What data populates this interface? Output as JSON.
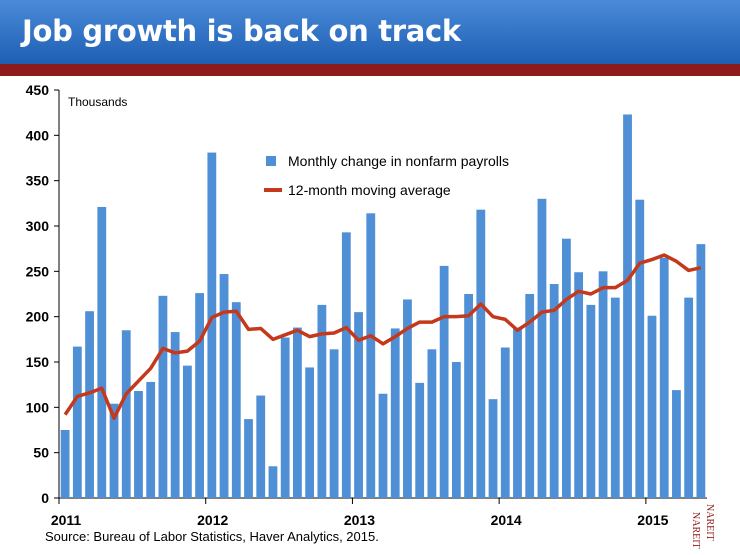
{
  "header": {
    "title": "Job growth is back on track"
  },
  "source": "Source: Bureau of Labor Statistics, Haver Analytics, 2015.",
  "logo": {
    "text": "NAREIT",
    "color": "#8e1b1b"
  },
  "colors": {
    "bar": "#4f8fd6",
    "line": "#c4391c",
    "header": "#2f6fc4",
    "rule": "#8e1b1b"
  },
  "chart_data": {
    "type": "bar",
    "unit_label": "Thousands",
    "ylim": [
      0,
      450
    ],
    "yticks": [
      0,
      50,
      100,
      150,
      200,
      250,
      300,
      350,
      400,
      450
    ],
    "x_tick_labels": [
      "2011",
      "2012",
      "2013",
      "2014",
      "2015"
    ],
    "x_tick_month_index": [
      0,
      12,
      24,
      36,
      48
    ],
    "grid": false,
    "legend": {
      "position": "top-center"
    },
    "series": [
      {
        "name": "Monthly change in nonfarm payrolls",
        "kind": "bar",
        "color": "#4f8fd6",
        "values": [
          75,
          167,
          206,
          321,
          104,
          185,
          118,
          128,
          223,
          183,
          146,
          226,
          381,
          247,
          216,
          87,
          113,
          35,
          177,
          188,
          144,
          213,
          164,
          293,
          205,
          314,
          115,
          187,
          219,
          127,
          164,
          256,
          150,
          225,
          318,
          109,
          166,
          188,
          225,
          330,
          236,
          286,
          249,
          213,
          250,
          221,
          423,
          329,
          201,
          265,
          119,
          221,
          280
        ]
      },
      {
        "name": "12-month moving average",
        "kind": "line",
        "color": "#c4391c",
        "values": [
          92,
          112,
          116,
          121,
          88,
          115,
          129,
          143,
          165,
          160,
          162,
          173,
          199,
          205,
          206,
          186,
          187,
          175,
          180,
          185,
          178,
          181,
          182,
          188,
          174,
          179,
          170,
          178,
          187,
          194,
          194,
          200,
          200,
          201,
          214,
          200,
          197,
          185,
          194,
          205,
          207,
          219,
          228,
          225,
          232,
          232,
          240,
          259,
          263,
          268,
          261,
          251,
          254
        ]
      }
    ]
  }
}
